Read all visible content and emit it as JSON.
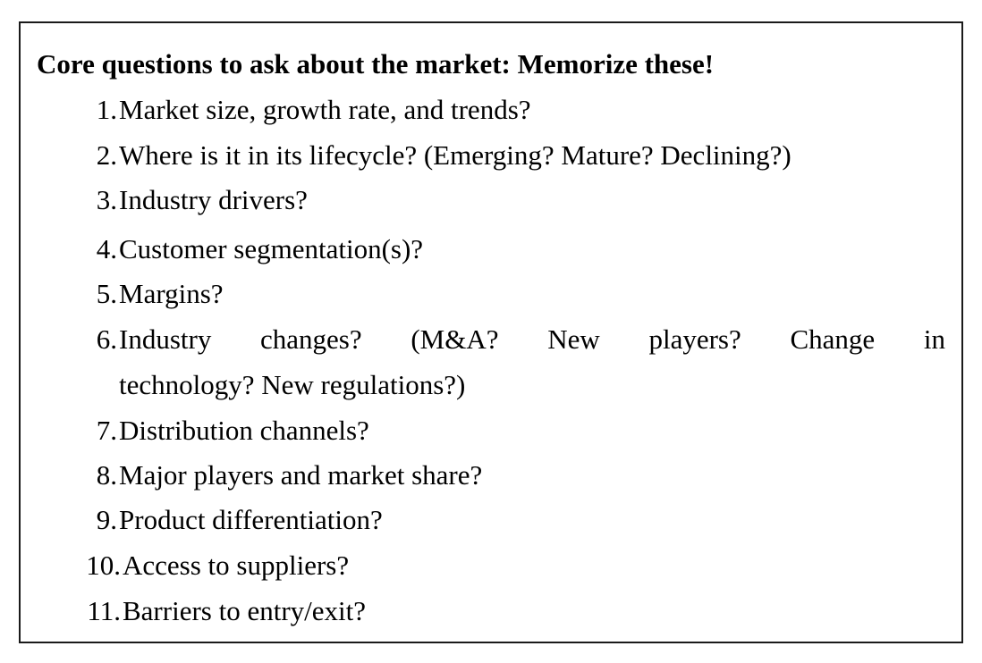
{
  "heading": "Core questions to ask about the market: Memorize these!",
  "items": [
    {
      "number": "1.",
      "text": "Market size, growth rate, and trends?"
    },
    {
      "number": "2.",
      "text": "Where is it in its lifecycle? (Emerging? Mature? Declining?)"
    },
    {
      "number": "3.",
      "text": "Industry drivers?"
    },
    {
      "number": "4.",
      "text": "Customer segmentation(s)?"
    },
    {
      "number": "5.",
      "text": "Margins?"
    },
    {
      "number": "6.",
      "words": [
        "Industry",
        "changes?",
        "(M&A?",
        "New",
        "players?",
        "Change",
        "in"
      ],
      "continuation": "technology? New regulations?)"
    },
    {
      "number": "7.",
      "text": "Distribution channels?"
    },
    {
      "number": "8.",
      "text": "Major players and market share?"
    },
    {
      "number": "9.",
      "text": "Product differentiation?"
    },
    {
      "number": "10.",
      "text": "Access to suppliers?"
    },
    {
      "number": "11.",
      "text": "Barriers to entry/exit?"
    }
  ]
}
